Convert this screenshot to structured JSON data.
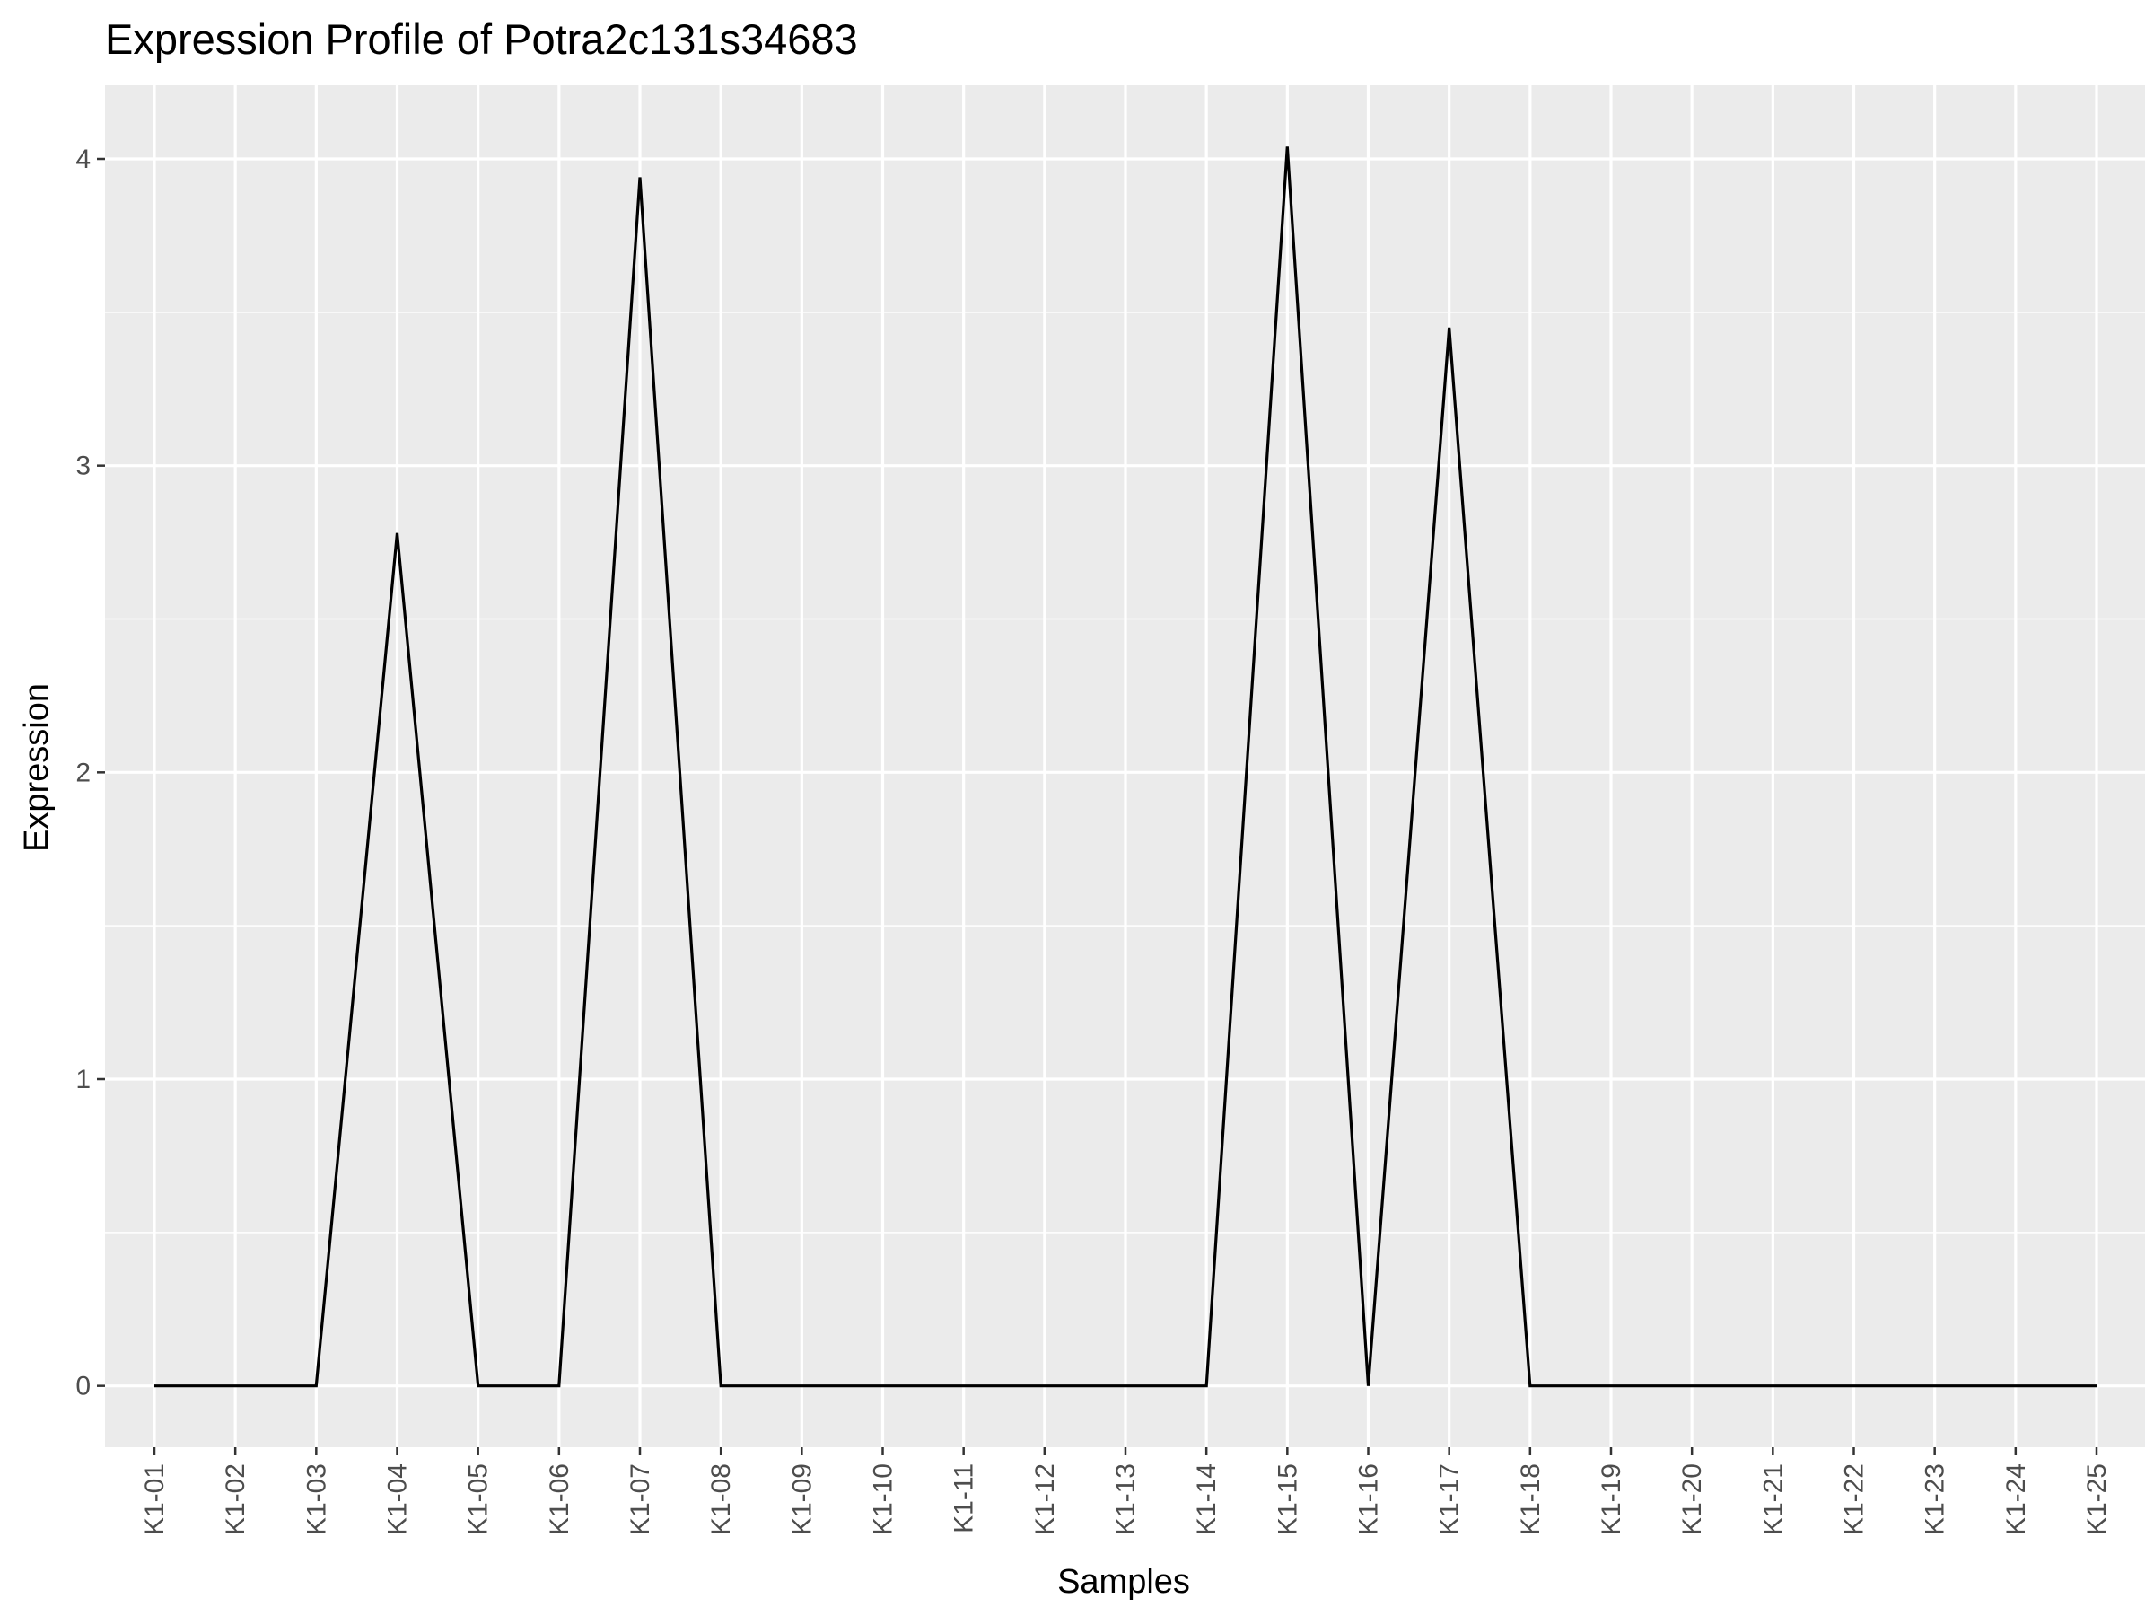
{
  "chart_data": {
    "type": "line",
    "title": "Expression Profile of Potra2c131s34683",
    "xlabel": "Samples",
    "ylabel": "Expression",
    "categories": [
      "K1-01",
      "K1-02",
      "K1-03",
      "K1-04",
      "K1-05",
      "K1-06",
      "K1-07",
      "K1-08",
      "K1-09",
      "K1-10",
      "K1-11",
      "K1-12",
      "K1-13",
      "K1-14",
      "K1-15",
      "K1-16",
      "K1-17",
      "K1-18",
      "K1-19",
      "K1-20",
      "K1-21",
      "K1-22",
      "K1-23",
      "K1-24",
      "K1-25"
    ],
    "values": [
      0,
      0,
      0,
      2.78,
      0,
      0,
      3.94,
      0,
      0,
      0,
      0,
      0,
      0,
      0,
      4.04,
      0,
      3.45,
      0,
      0,
      0,
      0,
      0,
      0,
      0,
      0
    ],
    "y_ticks": [
      "0",
      "1",
      "2",
      "3",
      "4"
    ],
    "ylim": [
      -0.2,
      4.24
    ],
    "grid": true,
    "line_color": "#000000",
    "panel_color": "#ebebeb",
    "grid_color": "#ffffff"
  }
}
